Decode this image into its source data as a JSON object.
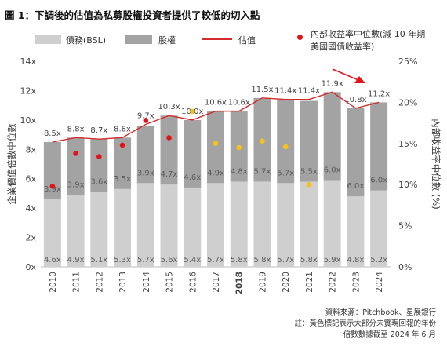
{
  "title": "圖 1：下調後的估值為私募股權投資者提供了較低的切入點",
  "legend": {
    "debt": "債務(BSL)",
    "equity": "股權",
    "valuation": "估值",
    "irr": "內部收益率中位數(減 10 年期美國國債收益率)"
  },
  "colors": {
    "debt": "#cfcfcf",
    "equity": "#a3a3a3",
    "line": "#d42b2b",
    "irr_dot": "#e0141a",
    "irr_dot_unrealized": "#f5c21b",
    "arrow": "#e0141a"
  },
  "notes": [
    "資料來源：Pitchbook、星展銀行",
    "註：黃色標記表示大部分未實現回報的年份",
    "倍數數據截至 2024 年 6 月"
  ],
  "chart_data": {
    "type": "bar",
    "stacked": true,
    "categories": [
      "2010",
      "2011",
      "2012",
      "2013",
      "2014",
      "2015",
      "2016",
      "2017",
      "2018",
      "2019",
      "2020",
      "2021",
      "2022",
      "2023",
      "2024"
    ],
    "series": [
      {
        "name": "債務(BSL)",
        "values": [
          4.6,
          4.9,
          5.1,
          5.3,
          5.7,
          5.6,
          5.4,
          5.7,
          5.8,
          5.8,
          5.7,
          5.8,
          5.9,
          4.8,
          5.2
        ],
        "labels": [
          "4.6x",
          "4.9x",
          "5.1x",
          "5.3x",
          "5.7x",
          "5.6x",
          "5.4x",
          "5.7x",
          "5.8x",
          "5.8x",
          "5.7x",
          "5.8x",
          "5.9x",
          "4.8x",
          "5.2x"
        ]
      },
      {
        "name": "股權",
        "values": [
          3.9,
          3.9,
          3.6,
          3.5,
          3.9,
          4.7,
          4.6,
          4.9,
          4.8,
          5.7,
          5.7,
          5.5,
          6.0,
          6.0,
          6.0
        ],
        "labels": [
          "3.9x",
          "3.9x",
          "3.6x",
          "3.5x",
          "3.9x",
          "4.7x",
          "4.6x",
          "4.9x",
          "4.8x",
          "5.7x",
          "5.7x",
          "5.5x",
          "6.0x",
          "6.0x",
          "6.0x"
        ]
      }
    ],
    "valuation": {
      "name": "估值",
      "values": [
        8.5,
        8.8,
        8.7,
        8.8,
        9.7,
        10.3,
        10.0,
        10.6,
        10.6,
        11.5,
        11.4,
        11.4,
        11.9,
        10.8,
        11.2
      ],
      "labels": [
        "8.5x",
        "8.8x",
        "8.7x",
        "8.8x",
        "9.7x",
        "10.3x",
        "10.0x",
        "10.6x",
        "10.6x",
        "11.5x",
        "11.4x",
        "11.4x",
        "11.9x",
        "10.8x",
        "11.2x"
      ]
    },
    "irr": {
      "name": "內部收益率中位數(減 10 年期美國國債收益率)",
      "values": [
        9.8,
        13.8,
        13.4,
        14.8,
        17.8,
        15.7,
        18.9,
        15.0,
        14.5,
        15.3,
        14.6,
        10.0,
        null,
        null,
        null
      ],
      "unrealized": [
        false,
        false,
        false,
        false,
        false,
        false,
        true,
        true,
        true,
        true,
        true,
        true,
        false,
        false,
        false
      ]
    },
    "ylabel": "企業價值倍數中位數",
    "y2label": "內部收益率中位數 (%)",
    "ylim": [
      0,
      14
    ],
    "y2lim": [
      0,
      25
    ],
    "yticks": [
      "0x",
      "2x",
      "4x",
      "6x",
      "8x",
      "10x",
      "12x",
      "14x"
    ],
    "y2ticks": [
      "0%",
      "5%",
      "10%",
      "15%",
      "20%",
      "25%"
    ],
    "bold_categories": [
      "2018"
    ],
    "grid": false
  }
}
